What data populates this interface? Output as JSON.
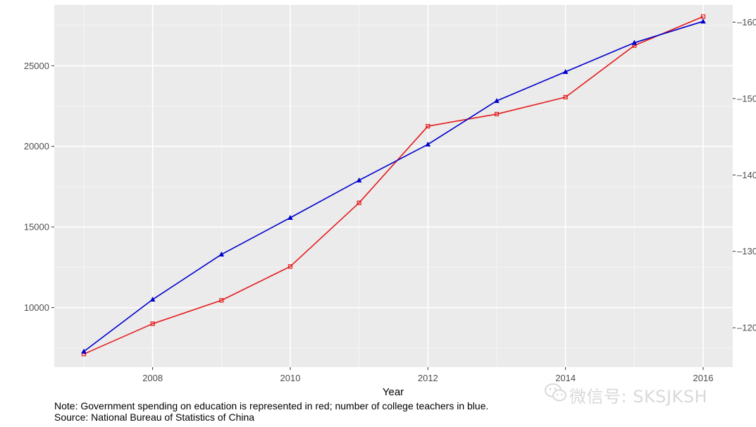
{
  "chart_data": {
    "type": "line",
    "xlabel": "Year",
    "x": [
      2007,
      2008,
      2009,
      2010,
      2011,
      2012,
      2013,
      2014,
      2015,
      2016
    ],
    "x_ticks": [
      "2008",
      "2010",
      "2012",
      "2014",
      "2016"
    ],
    "xlim": [
      2006.57,
      2016.43
    ],
    "grid": true,
    "series": [
      {
        "color": "#e41a1c",
        "marker": "square",
        "axis": "left",
        "values": [
          7120,
          9000,
          10450,
          12550,
          16500,
          21250,
          22000,
          23050,
          26250,
          28050
        ]
      },
      {
        "color": "#0000cc",
        "marker": "triangle",
        "axis": "right",
        "values": [
          116.9,
          123.7,
          129.6,
          134.4,
          139.3,
          144.0,
          149.7,
          153.5,
          157.3,
          160.1
        ]
      }
    ],
    "y_left": {
      "ticks": [
        10000,
        15000,
        20000,
        25000
      ],
      "lim": [
        6310,
        28770
      ]
    },
    "y_right": {
      "ticks": [
        120,
        130,
        140,
        150,
        160
      ],
      "lim": [
        114.85,
        162.25
      ]
    }
  },
  "note_line1": "Note: Government spending on education is represented in red; number of college teachers in blue.",
  "note_line2": "Source: National Bureau of Statistics of China",
  "watermark": "微信号: SKSJKSH"
}
